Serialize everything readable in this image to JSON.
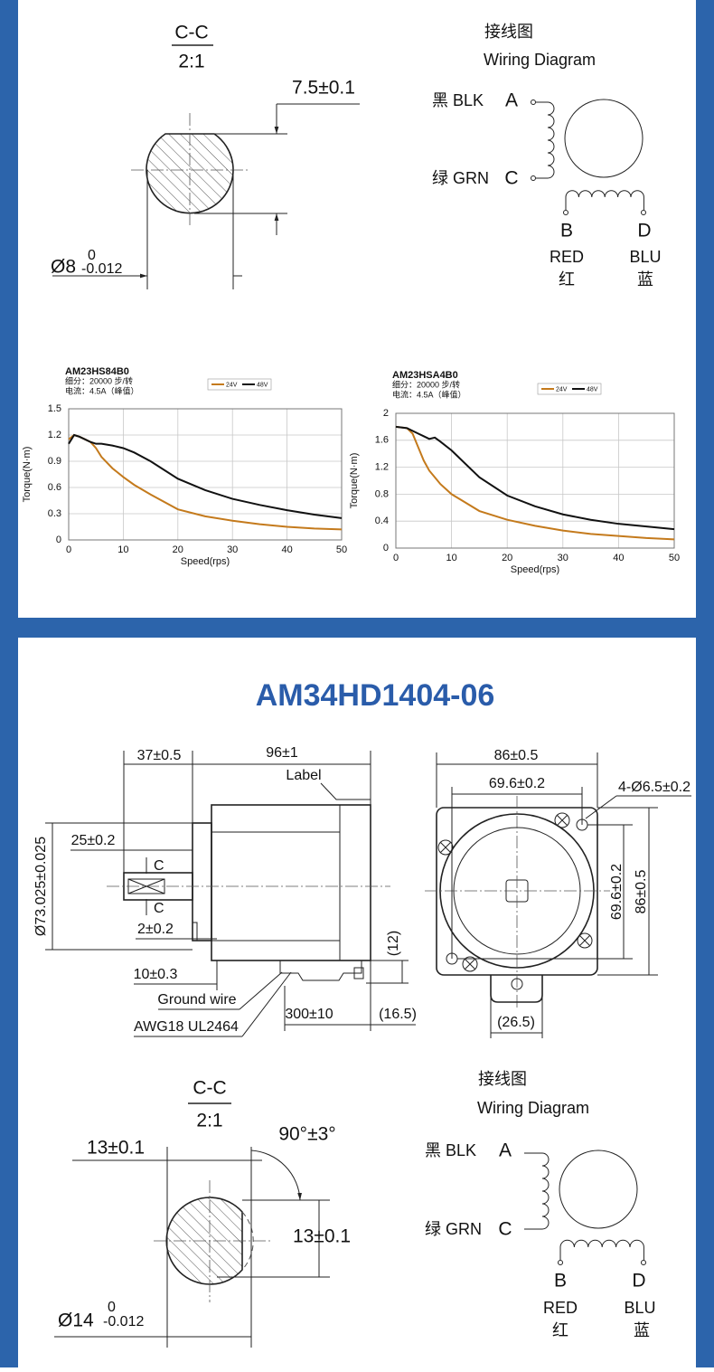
{
  "top_panel": {
    "section": {
      "label": "C-C",
      "scale": "2:1",
      "flat": "7.5±0.1",
      "diameter": "Ø8",
      "upper_tolerance": "0",
      "lower_tolerance": "-0.012"
    },
    "wiring": {
      "title_cn": "接线图",
      "title_en": "Wiring Diagram",
      "a_wire": "黑 BLK",
      "a": "A",
      "c_wire": "绿 GRN",
      "c": "C",
      "b": "B",
      "d": "D",
      "b_color": "RED",
      "d_color": "BLU",
      "b_color_cn": "红",
      "d_color_cn": "蓝"
    }
  },
  "chart_data": [
    {
      "type": "line",
      "title": "AM23HS84B0",
      "subtitle": [
        "细分：20000 步/转",
        "电流：4.5A（峰值）"
      ],
      "x": [
        0,
        1,
        2,
        3,
        4,
        5,
        6,
        8,
        10,
        12,
        15,
        20,
        25,
        30,
        35,
        40,
        45,
        50
      ],
      "series": [
        {
          "name": "24V",
          "color": "#c47a1c",
          "values": [
            1.15,
            1.2,
            1.18,
            1.15,
            1.12,
            1.05,
            0.95,
            0.82,
            0.72,
            0.63,
            0.52,
            0.35,
            0.27,
            0.22,
            0.18,
            0.15,
            0.13,
            0.12
          ]
        },
        {
          "name": "48V",
          "color": "#111111",
          "values": [
            1.1,
            1.2,
            1.18,
            1.15,
            1.12,
            1.1,
            1.1,
            1.08,
            1.05,
            1.0,
            0.9,
            0.7,
            0.57,
            0.47,
            0.4,
            0.34,
            0.29,
            0.25
          ]
        }
      ],
      "xlim": [
        0,
        50
      ],
      "ylim": [
        0,
        1.5
      ],
      "xticks": [
        0,
        10,
        20,
        30,
        40,
        50
      ],
      "yticks": [
        0,
        0.3,
        0.6,
        0.9,
        1.2,
        1.5
      ],
      "x_label": "Speed(rps)",
      "y_label": "Torque(N·m)",
      "grid": true,
      "legend": "top"
    },
    {
      "type": "line",
      "title": "AM23HSA4B0",
      "subtitle": [
        "细分：20000 步/转",
        "电流：4.5A（峰值）"
      ],
      "x": [
        0,
        2,
        3,
        4,
        5,
        6,
        7,
        8,
        10,
        15,
        20,
        25,
        30,
        35,
        40,
        45,
        50
      ],
      "series": [
        {
          "name": "24V",
          "color": "#c47a1c",
          "values": [
            1.8,
            1.78,
            1.7,
            1.5,
            1.3,
            1.15,
            1.05,
            0.95,
            0.8,
            0.55,
            0.42,
            0.33,
            0.26,
            0.21,
            0.18,
            0.15,
            0.13
          ]
        },
        {
          "name": "48V",
          "color": "#111111",
          "values": [
            1.8,
            1.78,
            1.74,
            1.7,
            1.66,
            1.62,
            1.64,
            1.58,
            1.45,
            1.05,
            0.78,
            0.62,
            0.5,
            0.42,
            0.36,
            0.32,
            0.28
          ]
        }
      ],
      "xlim": [
        0,
        50
      ],
      "ylim": [
        0,
        2
      ],
      "xticks": [
        0,
        10,
        20,
        30,
        40,
        50
      ],
      "yticks": [
        0,
        0.4,
        0.8,
        1.2,
        1.6,
        2
      ],
      "x_label": "Speed(rps)",
      "y_label": "Torque(N·m)",
      "grid": true,
      "legend": "top"
    }
  ],
  "bottom_panel": {
    "title": "AM34HD1404-06",
    "side_view": {
      "shaft_length": "37±0.5",
      "body_length": "96±1",
      "label": "Label",
      "key_length": "25±0.2",
      "section_mark_top": "C",
      "section_mark_bottom": "C",
      "pilot_diameter": "Ø73.025±0.025",
      "pilot_height": "2±0.2",
      "flange": "10±0.3",
      "ground_wire": "Ground wire",
      "cable": "AWG18 UL2464",
      "lead_length": "300±10",
      "exit_offset": "(16.5)",
      "exit_height": "(12)"
    },
    "front_view": {
      "width": "86±0.5",
      "hole_spacing": "69.6±0.2",
      "holes": "4-Ø6.5±0.2",
      "hole_spacing_v": "69.6±0.2",
      "height": "86±0.5",
      "tab_width": "(26.5)"
    },
    "section": {
      "label": "C-C",
      "scale": "2:1",
      "flat": "13±0.1",
      "angle": "90°±3°",
      "flat_v": "13±0.1",
      "diameter": "Ø14",
      "upper_tolerance": "0",
      "lower_tolerance": "-0.012"
    },
    "wiring": {
      "title_cn": "接线图",
      "title_en": "Wiring Diagram",
      "a_wire": "黑 BLK",
      "a": "A",
      "c_wire": "绿 GRN",
      "c": "C",
      "b": "B",
      "d": "D",
      "b_color": "RED",
      "d_color": "BLU",
      "b_color_cn": "红",
      "d_color_cn": "蓝"
    }
  }
}
